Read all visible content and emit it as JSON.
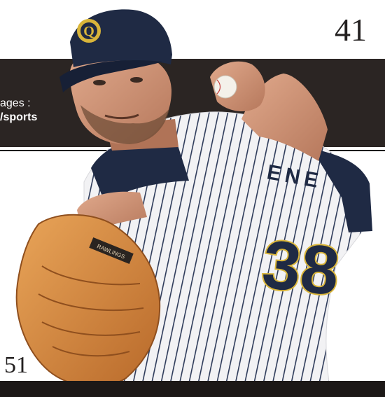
{
  "page": {
    "number_top": "41",
    "number_bottom": "51"
  },
  "band": {
    "line1": "ages :",
    "line2": "/sports"
  },
  "photo": {
    "cap_logo_letter": "Q",
    "jersey_number": "38",
    "jersey_name": "ENE",
    "glove_label": "RAWLINGS",
    "colors": {
      "band": "#2b2523",
      "cap": "#1f2a44",
      "glove": "#d98a3e",
      "trim": "#203a6e",
      "number_gold": "#d9b53a"
    }
  }
}
